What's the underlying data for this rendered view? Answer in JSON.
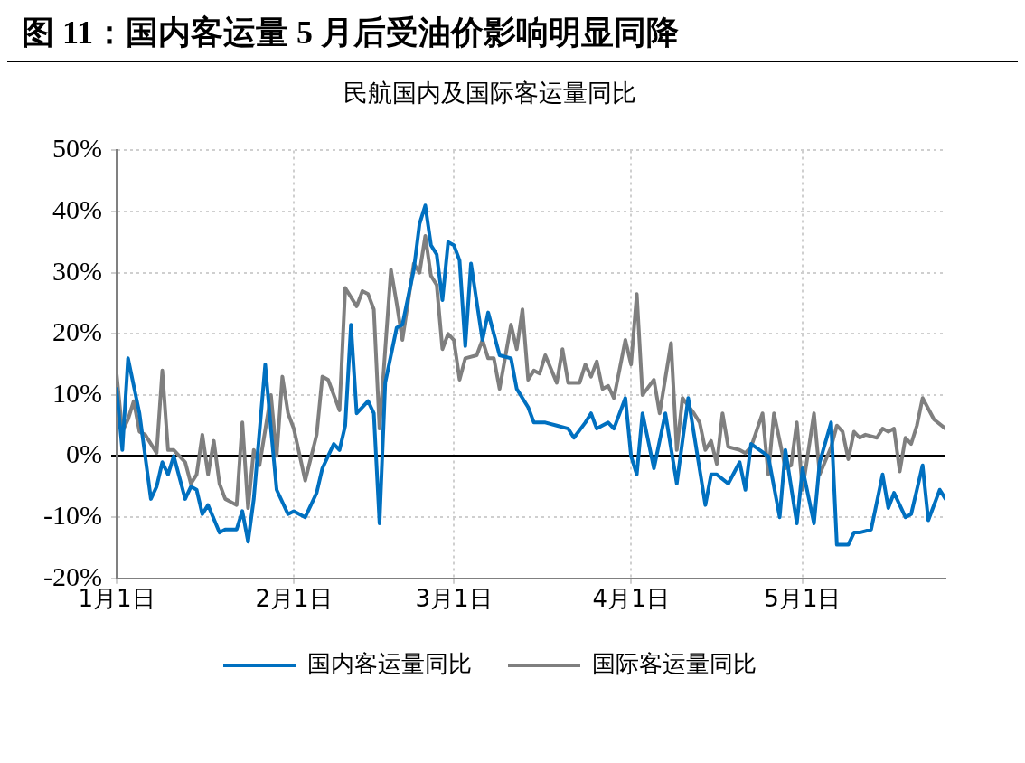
{
  "chart_data": {
    "type": "line",
    "title": "图 11：国内客运量 5 月后受油价影响明显同降",
    "subtitle": "民航国内及国际客运量同比",
    "xlim": [
      "--01-01",
      "--05-26"
    ],
    "xticks": [
      {
        "value": "--01-01",
        "label": "1月1日"
      },
      {
        "value": "--02-01",
        "label": "2月1日"
      },
      {
        "value": "--03-01",
        "label": "3月1日"
      },
      {
        "value": "--04-01",
        "label": "4月1日"
      },
      {
        "value": "--05-01",
        "label": "5月1日"
      }
    ],
    "ylim": [
      -20,
      50
    ],
    "yticks": [
      {
        "value": -20,
        "label": "-20%"
      },
      {
        "value": -10,
        "label": "-10%"
      },
      {
        "value": 0,
        "label": "0%"
      },
      {
        "value": 10,
        "label": "10%"
      },
      {
        "value": 20,
        "label": "20%"
      },
      {
        "value": 30,
        "label": "30%"
      },
      {
        "value": 40,
        "label": "40%"
      },
      {
        "value": 50,
        "label": "50%"
      }
    ],
    "grid": true,
    "legend": "bottom",
    "marker": "none",
    "line_style": "solid",
    "series": [
      {
        "name": "国内客运量同比",
        "color": "#0070c0",
        "x": [
          "--01-01",
          "--01-02",
          "--01-03",
          "--01-05",
          "--01-07",
          "--01-08",
          "--01-09",
          "--01-10",
          "--01-11",
          "--01-13",
          "--01-14",
          "--01-15",
          "--01-16",
          "--01-17",
          "--01-19",
          "--01-20",
          "--01-22",
          "--01-23",
          "--01-24",
          "--01-25",
          "--01-27",
          "--01-28",
          "--01-29",
          "--01-31",
          "--02-01",
          "--02-03",
          "--02-05",
          "--02-06",
          "--02-08",
          "--02-09",
          "--02-10",
          "--02-11",
          "--02-12",
          "--02-14",
          "--02-15",
          "--02-16",
          "--02-17",
          "--02-19",
          "--02-20",
          "--02-22",
          "--02-23",
          "--02-24",
          "--02-25",
          "--02-26",
          "--02-27",
          "--02-28",
          "--03-01",
          "--03-02",
          "--03-03",
          "--03-04",
          "--03-06",
          "--03-07",
          "--03-09",
          "--03-11",
          "--03-12",
          "--03-14",
          "--03-15",
          "--03-17",
          "--03-19",
          "--03-21",
          "--03-22",
          "--03-24",
          "--03-25",
          "--03-26",
          "--03-28",
          "--03-29",
          "--03-31",
          "--04-01",
          "--04-02",
          "--04-03",
          "--04-05",
          "--04-07",
          "--04-09",
          "--04-11",
          "--04-14",
          "--04-15",
          "--04-16",
          "--04-18",
          "--04-20",
          "--04-21",
          "--04-22",
          "--04-25",
          "--04-27",
          "--04-28",
          "--04-30",
          "--05-01",
          "--05-03",
          "--05-04",
          "--05-06",
          "--05-07",
          "--05-09",
          "--05-10",
          "--05-11",
          "--05-13",
          "--05-15",
          "--05-16",
          "--05-17",
          "--05-19",
          "--05-20",
          "--05-22",
          "--05-23",
          "--05-25",
          "--05-26"
        ],
        "values": [
          11,
          1,
          16,
          7,
          -7,
          -5,
          -1,
          -3,
          0,
          -7,
          -5,
          -5.5,
          -9.5,
          -8,
          -12.5,
          -12,
          -12,
          -9,
          -14,
          -7,
          15,
          4.5,
          -5.5,
          -9.5,
          -9,
          -10,
          -6,
          -2,
          2,
          1,
          5,
          21.5,
          7,
          9,
          7,
          -11,
          12,
          21,
          21.5,
          30.5,
          38,
          41,
          34.5,
          33,
          25.5,
          35,
          34.5,
          32,
          18,
          31.5,
          19,
          23.5,
          16.5,
          16,
          11,
          8,
          5.5,
          5.5,
          5,
          4.5,
          3,
          5.5,
          7,
          4.5,
          5.5,
          4.5,
          9.5,
          0,
          -3,
          7,
          -2,
          7,
          -4.5,
          9.5,
          -8,
          -3,
          -3,
          -4.5,
          -1,
          -5.5,
          2,
          0,
          -10,
          1,
          -11,
          -2,
          -11,
          -1,
          5.5,
          -14.5,
          -14.5,
          -12.5,
          -12.5,
          -12,
          -3,
          -8.5,
          -6,
          -10,
          -9.5,
          -1.5,
          -10.5,
          -5.5,
          -7
        ]
      },
      {
        "name": "国际客运量同比",
        "color": "#7f7f7f",
        "x": [
          "--01-01",
          "--01-02",
          "--01-03",
          "--01-04",
          "--01-05",
          "--01-06",
          "--01-08",
          "--01-09",
          "--01-10",
          "--01-11",
          "--01-13",
          "--01-14",
          "--01-15",
          "--01-16",
          "--01-17",
          "--01-18",
          "--01-19",
          "--01-20",
          "--01-22",
          "--01-23",
          "--01-24",
          "--01-25",
          "--01-26",
          "--01-28",
          "--01-29",
          "--01-30",
          "--01-31",
          "--02-01",
          "--02-03",
          "--02-05",
          "--02-06",
          "--02-07",
          "--02-09",
          "--02-10",
          "--02-12",
          "--02-13",
          "--02-14",
          "--02-15",
          "--02-16",
          "--02-18",
          "--02-19",
          "--02-20",
          "--02-22",
          "--02-23",
          "--02-24",
          "--02-25",
          "--02-26",
          "--02-27",
          "--02-28",
          "--03-01",
          "--03-02",
          "--03-03",
          "--03-05",
          "--03-06",
          "--03-07",
          "--03-08",
          "--03-09",
          "--03-11",
          "--03-12",
          "--03-13",
          "--03-14",
          "--03-15",
          "--03-16",
          "--03-17",
          "--03-19",
          "--03-20",
          "--03-21",
          "--03-23",
          "--03-24",
          "--03-25",
          "--03-26",
          "--03-27",
          "--03-28",
          "--03-29",
          "--03-31",
          "--04-01",
          "--04-02",
          "--04-03",
          "--04-05",
          "--04-06",
          "--04-08",
          "--04-09",
          "--04-10",
          "--04-12",
          "--04-13",
          "--04-14",
          "--04-15",
          "--04-16",
          "--04-17",
          "--04-18",
          "--04-20",
          "--04-21",
          "--04-22",
          "--04-24",
          "--04-25",
          "--04-26",
          "--04-28",
          "--04-29",
          "--04-30",
          "--05-01",
          "--05-03",
          "--05-04",
          "--05-06",
          "--05-07",
          "--05-08",
          "--05-09",
          "--05-10",
          "--05-11",
          "--05-12",
          "--05-14",
          "--05-15",
          "--05-16",
          "--05-17",
          "--05-18",
          "--05-19",
          "--05-20",
          "--05-21",
          "--05-22",
          "--05-24",
          "--05-26"
        ],
        "values": [
          13.5,
          4,
          6,
          9,
          4,
          3.5,
          0.5,
          14,
          1,
          1,
          -1,
          -4.5,
          -3,
          3.5,
          -3,
          2.5,
          -4.5,
          -7,
          -8,
          5.5,
          -8.5,
          1,
          -1.5,
          10,
          0,
          13,
          7,
          4.5,
          -4,
          3.5,
          13,
          12.5,
          7.5,
          27.5,
          24.5,
          27,
          26.5,
          24,
          4.5,
          30.5,
          25,
          19,
          31.5,
          30,
          36,
          29.5,
          28,
          17.5,
          20,
          19,
          12.5,
          16,
          16.5,
          19,
          16,
          16,
          11,
          21.5,
          17.5,
          24,
          12.5,
          14,
          13.5,
          16.5,
          12,
          17.5,
          12,
          12,
          15,
          13,
          15.5,
          11,
          11.5,
          9.5,
          19,
          15,
          26.5,
          10,
          12.5,
          7,
          18.5,
          1,
          9.5,
          7,
          5.5,
          1,
          2.5,
          -1.3,
          7,
          1.5,
          1,
          0.5,
          1.5,
          7,
          -3,
          7,
          -2,
          -1.5,
          5.5,
          -5.5,
          7,
          -3,
          1.5,
          5,
          4,
          -0.5,
          4,
          3,
          3.5,
          3,
          4.5,
          4,
          4.5,
          -2.5,
          3,
          2,
          5,
          9.5,
          6,
          4.5
        ]
      }
    ]
  }
}
